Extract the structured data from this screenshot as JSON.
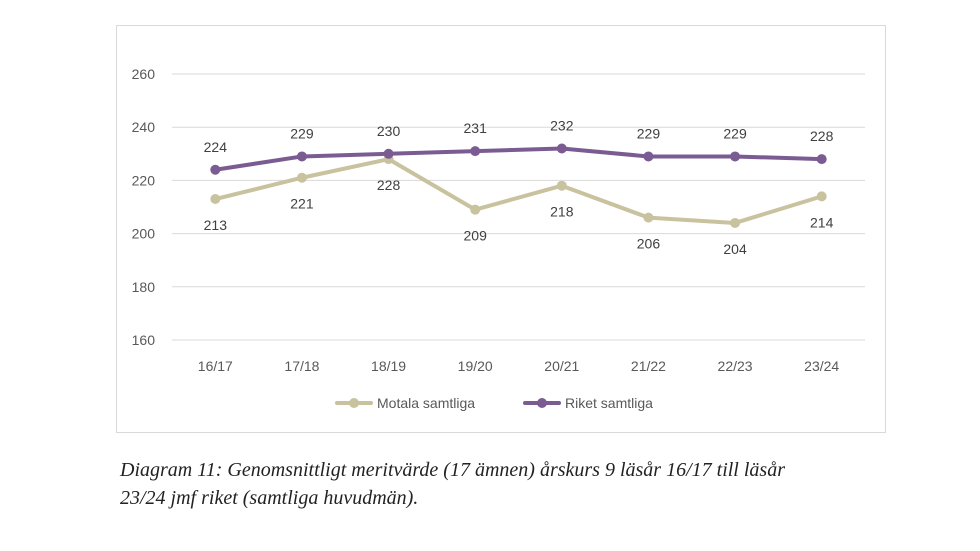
{
  "chart_data": {
    "type": "line",
    "title": "",
    "xlabel": "",
    "ylabel": "",
    "categories": [
      "16/17",
      "17/18",
      "18/19",
      "19/20",
      "20/21",
      "21/22",
      "22/23",
      "23/24"
    ],
    "yticks": [
      160,
      180,
      200,
      220,
      240,
      260
    ],
    "ylim": [
      160,
      260
    ],
    "grid": true,
    "legend_position": "bottom",
    "series": [
      {
        "name": "Motala samtliga",
        "color": "#c9c29f",
        "values": [
          213,
          221,
          228,
          209,
          218,
          206,
          204,
          214
        ],
        "data_labels": [
          "213",
          "221",
          "228",
          "209",
          "218",
          "206",
          "204",
          "214"
        ],
        "label_placement": "below"
      },
      {
        "name": "Riket samtliga",
        "color": "#7a5c93",
        "values": [
          224,
          229,
          230,
          231,
          232,
          229,
          229,
          228
        ],
        "data_labels": [
          "224",
          "229",
          "230",
          "231",
          "232",
          "229",
          "229",
          "228"
        ],
        "label_placement": "above"
      }
    ]
  },
  "caption": {
    "line1": "Diagram 11: Genomsnittligt meritvärde (17 ämnen) årskurs 9 läsår 16/17 till läsår",
    "line2": "23/24 jmf riket (samtliga huvudmän)."
  }
}
